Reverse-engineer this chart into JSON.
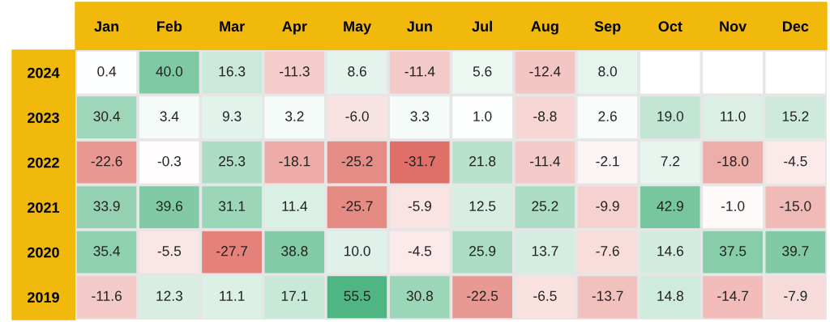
{
  "chart_data": {
    "type": "heatmap",
    "categories": [
      "Jan",
      "Feb",
      "Mar",
      "Apr",
      "May",
      "Jun",
      "Jul",
      "Aug",
      "Sep",
      "Oct",
      "Nov",
      "Dec"
    ],
    "y_categories": [
      "2024",
      "2023",
      "2022",
      "2021",
      "2020",
      "2019"
    ],
    "cells": [
      [
        0.4,
        40.0,
        16.3,
        -11.3,
        8.6,
        -11.4,
        5.6,
        -12.4,
        8.0,
        null,
        null,
        null
      ],
      [
        30.4,
        3.4,
        9.3,
        3.2,
        -6.0,
        3.3,
        1.0,
        -8.8,
        2.6,
        19.0,
        11.0,
        15.2
      ],
      [
        -22.6,
        -0.3,
        25.3,
        -18.1,
        -25.2,
        -31.7,
        21.8,
        -11.4,
        -2.1,
        7.2,
        -18.0,
        -4.5
      ],
      [
        33.9,
        39.6,
        31.1,
        11.4,
        -25.7,
        -5.9,
        12.5,
        25.2,
        -9.9,
        42.9,
        -1.0,
        -15.0
      ],
      [
        35.4,
        -5.5,
        -27.7,
        38.8,
        10.0,
        -4.5,
        25.9,
        13.7,
        -7.6,
        14.6,
        37.5,
        39.7
      ],
      [
        -11.6,
        12.3,
        11.1,
        17.1,
        55.5,
        30.8,
        -22.5,
        -6.5,
        -13.7,
        14.8,
        -14.7,
        -7.9
      ]
    ],
    "cell_labels": [
      [
        "0.4",
        "40.0",
        "16.3",
        "-11.3",
        "8.6",
        "-11.4",
        "5.6",
        "-12.4",
        "8.0",
        null,
        null,
        null
      ],
      [
        "30.4",
        "3.4",
        "9.3",
        "3.2",
        "-6.0",
        "3.3",
        "1.0",
        "-8.8",
        "2.6",
        "19.0",
        "11.0",
        "15.2"
      ],
      [
        "-22.6",
        "-0.3",
        "25.3",
        "-18.1",
        "-25.2",
        "-31.7",
        "21.8",
        "-11.4",
        "-2.1",
        "7.2",
        "-18.0",
        "-4.5"
      ],
      [
        "33.9",
        "39.6",
        "31.1",
        "11.4",
        "-25.7",
        "-5.9",
        "12.5",
        "25.2",
        "-9.9",
        "42.9",
        "-1.0",
        "-15.0"
      ],
      [
        "35.4",
        "-5.5",
        "-27.7",
        "38.8",
        "10.0",
        "-4.5",
        "25.9",
        "13.7",
        "-7.6",
        "14.6",
        "37.5",
        "39.7"
      ],
      [
        "-11.6",
        "12.3",
        "11.1",
        "17.1",
        "55.5",
        "30.8",
        "-22.5",
        "-6.5",
        "-13.7",
        "14.8",
        "-14.7",
        "-7.9"
      ]
    ]
  }
}
